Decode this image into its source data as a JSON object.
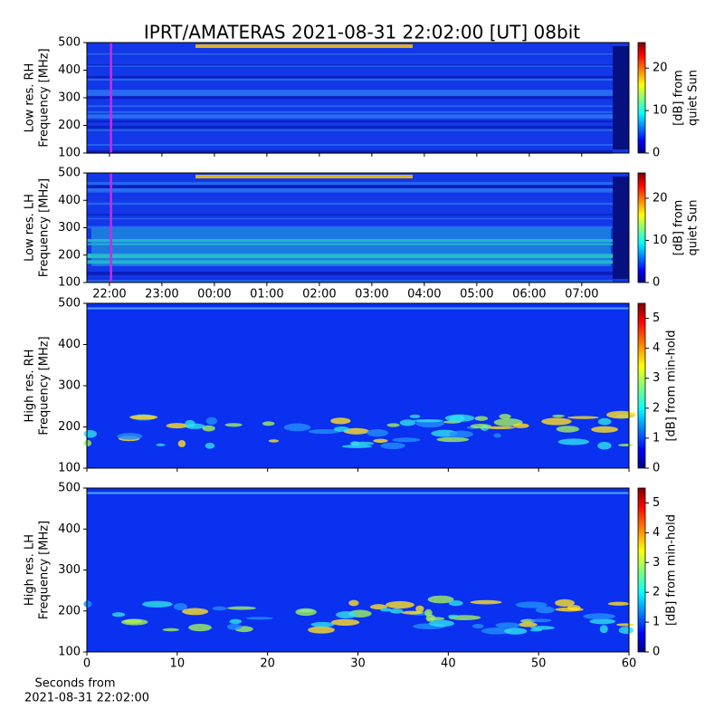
{
  "chart_data": [
    {
      "type": "heatmap",
      "title": "IPRT/AMATERAS 2021-08-31 22:02:00 [UT]   08bit",
      "ylabel": [
        "Low res. RH",
        "Frequency [MHz]"
      ],
      "ylim": [
        100,
        500
      ],
      "yticks": [
        100,
        200,
        300,
        400,
        500
      ],
      "xlim": [
        21.57,
        31.9
      ],
      "marker": {
        "x": 22.03,
        "color": "#e020e0"
      },
      "colorbar": {
        "clim": [
          0,
          26
        ],
        "ticks": [
          0,
          10,
          20
        ],
        "label": [
          "[dB] from",
          "quiet Sun"
        ]
      }
    },
    {
      "type": "heatmap",
      "ylabel": [
        "Low res. LH",
        "Frequency [MHz]"
      ],
      "ylim": [
        100,
        500
      ],
      "yticks": [
        100,
        200,
        300,
        400,
        500
      ],
      "xlim": [
        21.57,
        31.9
      ],
      "xticks": [
        {
          "value": 22,
          "label": "22:00"
        },
        {
          "value": 23,
          "label": "23:00"
        },
        {
          "value": 24,
          "label": "00:00"
        },
        {
          "value": 25,
          "label": "01:00"
        },
        {
          "value": 26,
          "label": "02:00"
        },
        {
          "value": 27,
          "label": "03:00"
        },
        {
          "value": 28,
          "label": "04:00"
        },
        {
          "value": 29,
          "label": "05:00"
        },
        {
          "value": 30,
          "label": "06:00"
        },
        {
          "value": 31,
          "label": "07:00"
        }
      ],
      "marker": {
        "x": 22.03,
        "color": "#e020e0"
      },
      "colorbar": {
        "clim": [
          0,
          26
        ],
        "ticks": [
          0,
          10,
          20
        ],
        "label": [
          "[dB] from",
          "quiet Sun"
        ]
      }
    },
    {
      "type": "heatmap",
      "ylabel": [
        "High res. RH",
        "Frequency [MHz]"
      ],
      "ylim": [
        100,
        500
      ],
      "yticks": [
        100,
        200,
        300,
        400,
        500
      ],
      "xlim": [
        0,
        60
      ],
      "colorbar": {
        "clim": [
          0,
          5.5
        ],
        "ticks": [
          0,
          1,
          2,
          3,
          4,
          5
        ],
        "label": [
          "[dB] from min-hold"
        ]
      }
    },
    {
      "type": "heatmap",
      "ylabel": [
        "High res. LH",
        "Frequency [MHz]"
      ],
      "ylim": [
        100,
        500
      ],
      "yticks": [
        100,
        200,
        300,
        400,
        500
      ],
      "xlim": [
        0,
        60
      ],
      "xticks": [
        0,
        10,
        20,
        30,
        40,
        50,
        60
      ],
      "xlabel": [
        "Seconds from",
        "2021-08-31 22:02:00"
      ],
      "colorbar": {
        "clim": [
          0,
          5.5
        ],
        "ticks": [
          0,
          1,
          2,
          3,
          4,
          5
        ],
        "label": [
          "[dB] from min-hold"
        ]
      }
    }
  ]
}
